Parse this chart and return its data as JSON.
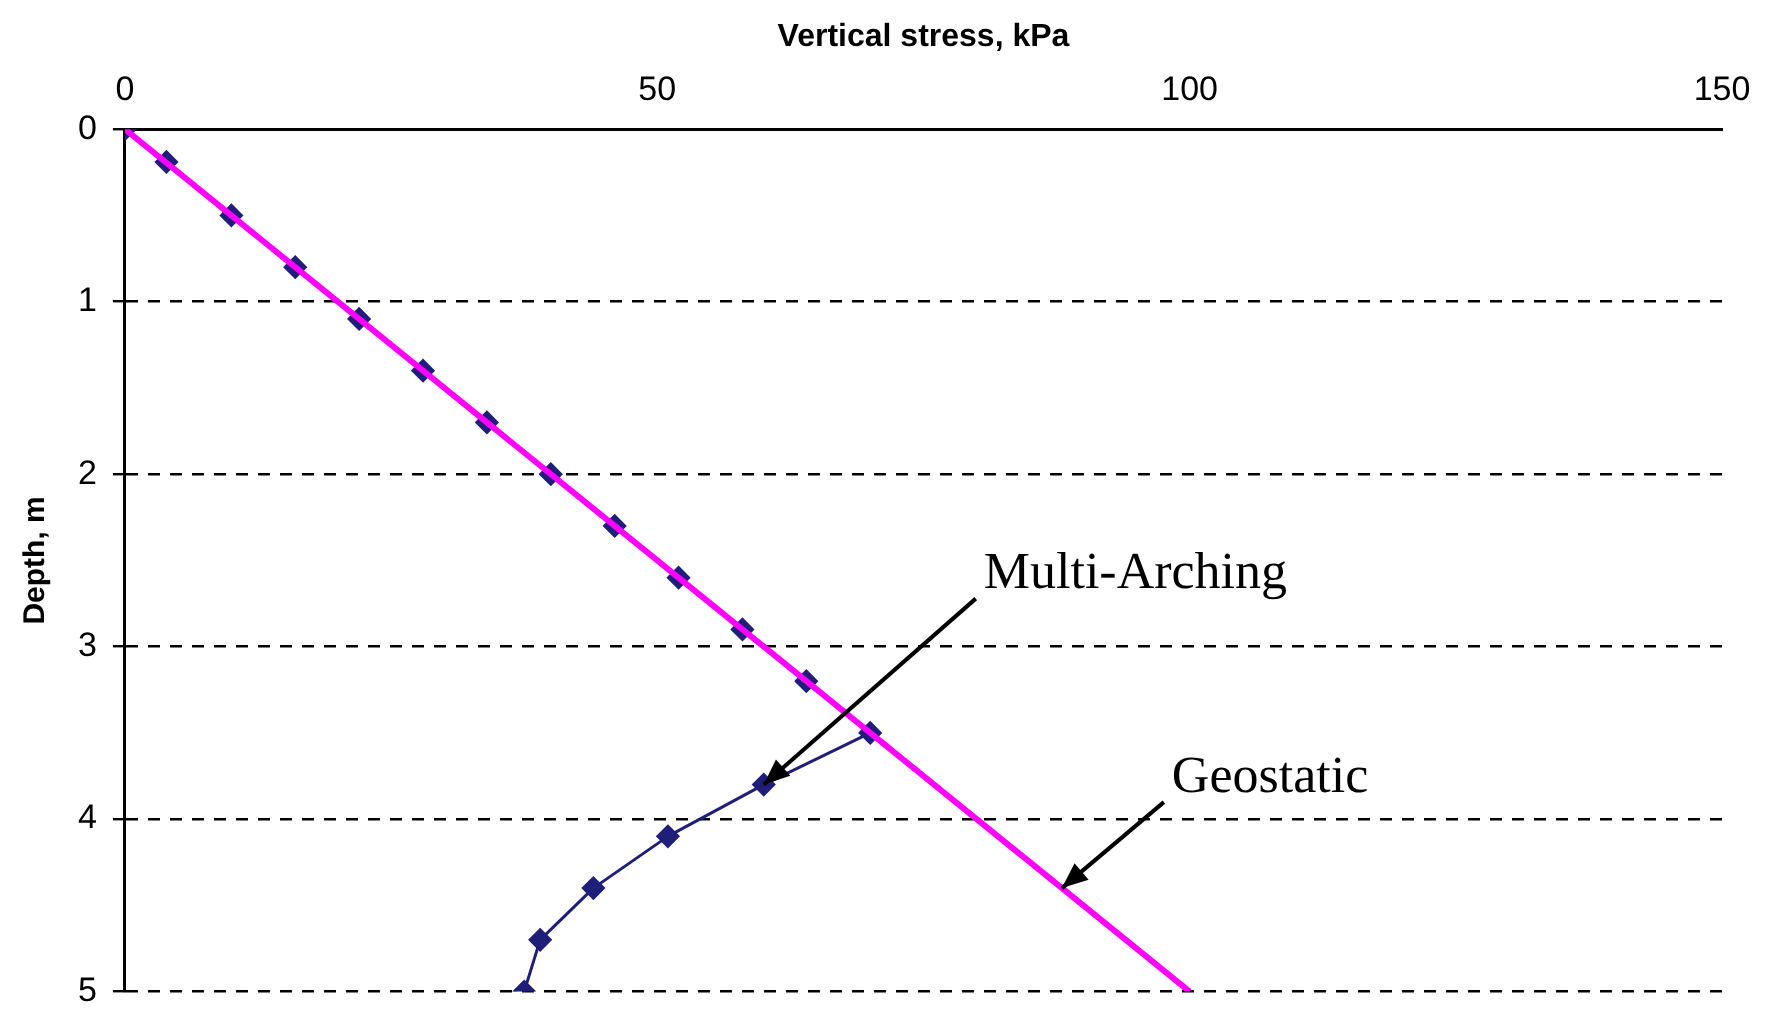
{
  "chart_data": {
    "type": "line",
    "xlabel": "Vertical stress, kPa",
    "ylabel": "Depth, m",
    "xlim": [
      0,
      150
    ],
    "xticks": [
      0,
      50,
      100,
      150
    ],
    "ylim": [
      5,
      0
    ],
    "yticks": [
      0,
      1,
      2,
      3,
      4,
      5
    ],
    "grid": "y",
    "legend": false,
    "series": [
      {
        "color": "#ff00ff",
        "marker": "none",
        "x": [
          0,
          100
        ],
        "values": [
          0,
          5
        ]
      },
      {
        "color": "#1f1f7a",
        "marker": "diamond",
        "x": [
          0,
          3.9,
          10,
          16,
          22,
          28,
          34,
          40,
          46,
          52,
          58,
          64,
          70,
          60,
          51,
          44,
          39,
          37.5
        ],
        "values": [
          0,
          0.19,
          0.5,
          0.8,
          1.1,
          1.4,
          1.7,
          2.0,
          2.3,
          2.6,
          2.9,
          3.2,
          3.5,
          3.8,
          4.1,
          4.4,
          4.7,
          5.0
        ]
      }
    ],
    "annotations": [
      {
        "text": "Multi-Arching",
        "x": 60,
        "y": 3.8
      },
      {
        "text": "Geostatic",
        "x": 88,
        "y": 4.4
      }
    ]
  }
}
